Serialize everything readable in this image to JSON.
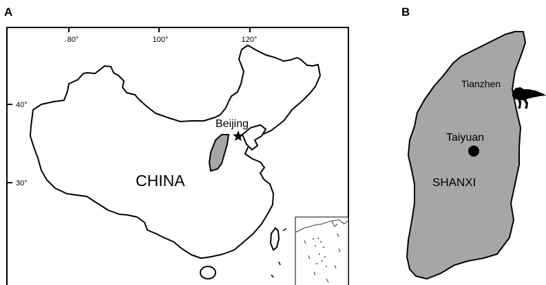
{
  "panels": {
    "a_label": "A",
    "b_label": "B"
  },
  "panel_a": {
    "longitude_ticks": [
      "80°",
      "100°",
      "120°"
    ],
    "latitude_ticks": [
      "40°",
      "30°"
    ],
    "city_label": "Beijing",
    "country_label": "CHINA",
    "city_marker": "star",
    "highlight_color": "#a6a6a6"
  },
  "panel_b": {
    "north_label": "Tianzhen",
    "capital_label": "Taiyuan",
    "province_label": "SHANXI",
    "fill_color": "#a6a6a6",
    "site_marker": "dinosaur-silhouette"
  }
}
